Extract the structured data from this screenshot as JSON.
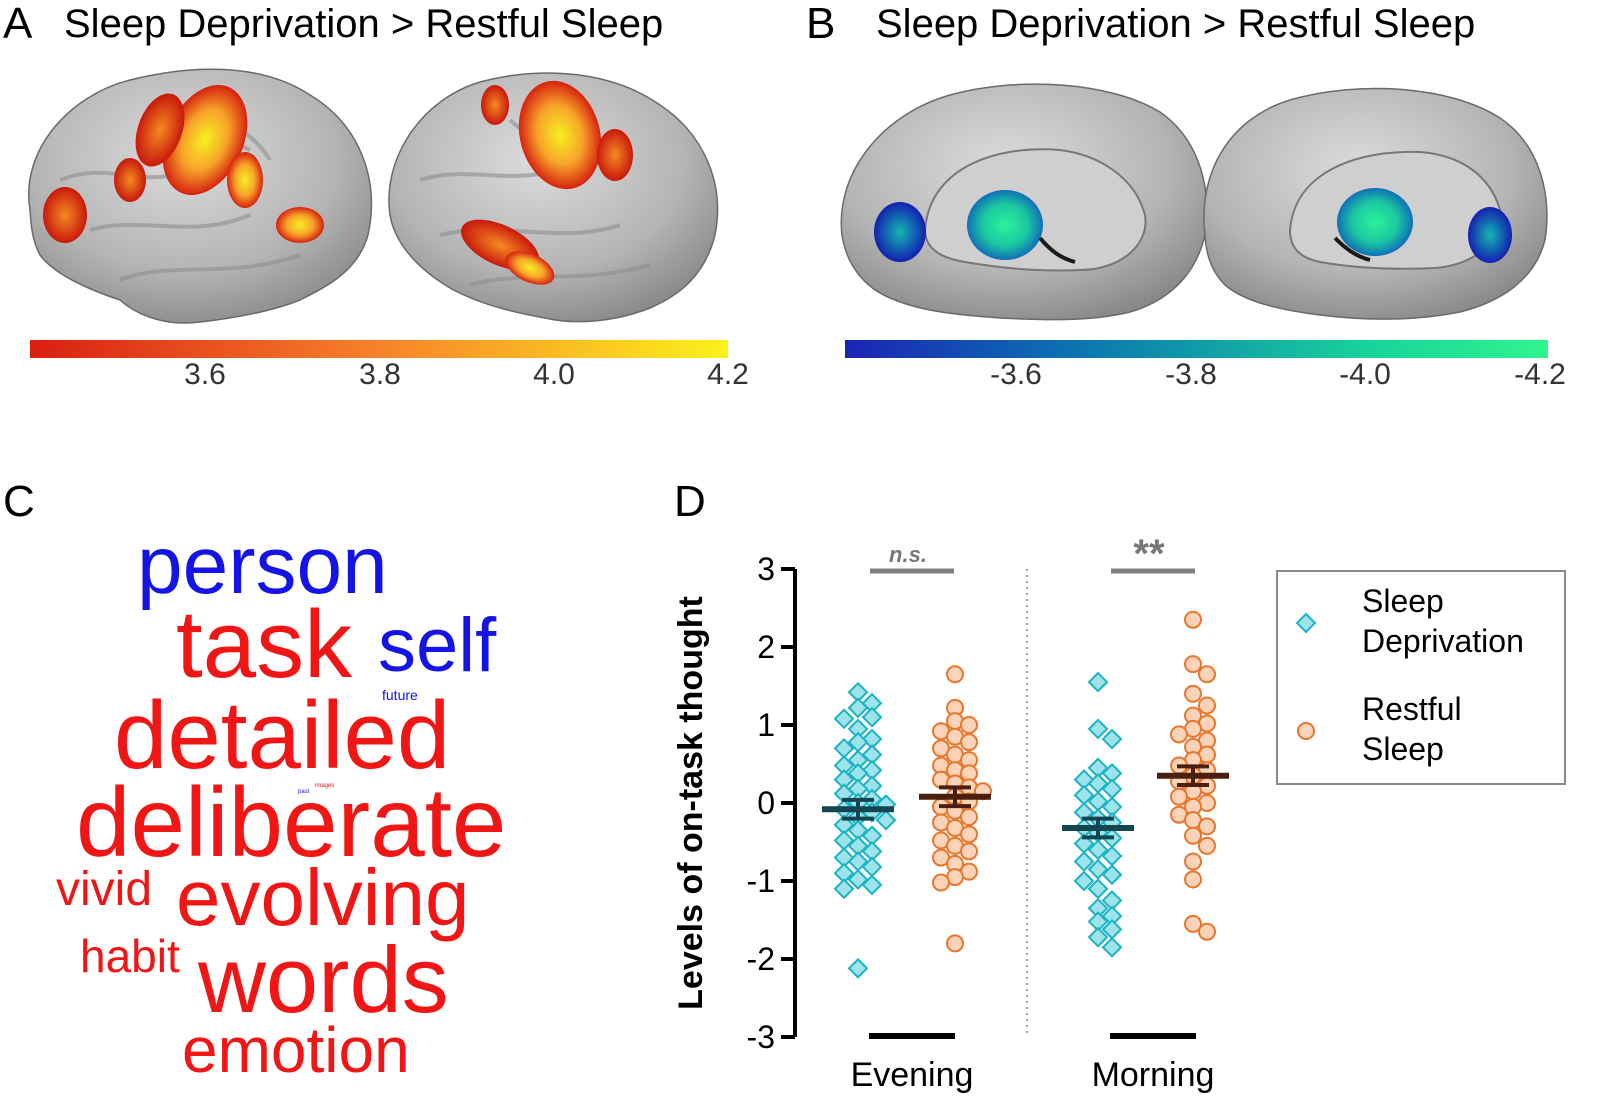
{
  "panels": {
    "a": {
      "letter": "A",
      "title": "Sleep Deprivation > Restful Sleep",
      "colorbar": {
        "ticks": [
          "3.6",
          "3.8",
          "4.0",
          "4.2"
        ],
        "colors": [
          "#d91f12",
          "#f7822a",
          "#fbf21a"
        ]
      },
      "images": {
        "left": "brain-lateral-left",
        "right": "brain-lateral-right"
      }
    },
    "b": {
      "letter": "B",
      "title": "Sleep Deprivation > Restful Sleep",
      "colorbar": {
        "ticks": [
          "-3.6",
          "-3.8",
          "-4.0",
          "-4.2"
        ],
        "colors": [
          "#1a24b5",
          "#0b79b0",
          "#18d49a",
          "#2ff58e"
        ]
      },
      "images": {
        "left": "brain-medial-left",
        "right": "brain-medial-right"
      }
    },
    "c": {
      "letter": "C",
      "words": [
        {
          "text": "person",
          "color": "#1414e6"
        },
        {
          "text": "task",
          "color": "#f01616"
        },
        {
          "text": "self",
          "color": "#1414e6"
        },
        {
          "text": "future",
          "color": "#1414e6"
        },
        {
          "text": "detailed",
          "color": "#f01616"
        },
        {
          "text": "past",
          "color": "#1414e6"
        },
        {
          "text": "images",
          "color": "#f01616"
        },
        {
          "text": "deliberate",
          "color": "#f01616"
        },
        {
          "text": "vivid",
          "color": "#f01616"
        },
        {
          "text": "evolving",
          "color": "#f01616"
        },
        {
          "text": "habit",
          "color": "#f01616"
        },
        {
          "text": "words",
          "color": "#f01616"
        },
        {
          "text": "emotion",
          "color": "#f01616"
        }
      ]
    },
    "d": {
      "letter": "D"
    }
  },
  "chart_data": {
    "type": "scatter",
    "ylabel": "Levels of on-task thought",
    "ylim": [
      -3,
      3
    ],
    "yticks": [
      3,
      2,
      1,
      0,
      -1,
      -2,
      -3
    ],
    "categories": [
      "Evening",
      "Morning"
    ],
    "significance": [
      "n.s.",
      "**"
    ],
    "legend": {
      "placement": "right",
      "items": [
        {
          "line1": "Sleep",
          "line2": "Deprivation",
          "marker": "diamond",
          "color": "#1cb3c4"
        },
        {
          "line1": "Restful",
          "line2": "Sleep",
          "marker": "circle",
          "color": "#e8772e"
        }
      ]
    },
    "series": [
      {
        "name": "Sleep Deprivation",
        "marker": "diamond",
        "color": "#1cb3c4",
        "fill": "#9ee3ea",
        "groups": [
          {
            "category": "Evening",
            "mean": -0.08,
            "sem": 0.12,
            "values": [
              1.42,
              1.28,
              1.22,
              1.1,
              1.08,
              0.95,
              0.82,
              0.78,
              0.7,
              0.62,
              0.55,
              0.48,
              0.42,
              0.38,
              0.3,
              0.22,
              0.18,
              0.12,
              0.05,
              0.0,
              -0.02,
              -0.08,
              -0.12,
              -0.18,
              -0.22,
              -0.28,
              -0.35,
              -0.42,
              -0.48,
              -0.55,
              -0.62,
              -0.7,
              -0.75,
              -0.82,
              -0.9,
              -0.98,
              -1.05,
              -1.1,
              -2.12
            ]
          },
          {
            "category": "Morning",
            "mean": -0.32,
            "sem": 0.12,
            "values": [
              1.55,
              0.95,
              0.82,
              0.45,
              0.38,
              0.3,
              0.25,
              0.18,
              0.1,
              0.02,
              -0.05,
              -0.12,
              -0.2,
              -0.25,
              -0.32,
              -0.38,
              -0.45,
              -0.52,
              -0.6,
              -0.68,
              -0.75,
              -0.85,
              -0.92,
              -1.0,
              -1.1,
              -1.25,
              -1.35,
              -1.45,
              -1.52,
              -1.62,
              -1.72,
              -1.85
            ]
          }
        ]
      },
      {
        "name": "Restful Sleep",
        "marker": "circle",
        "color": "#e8772e",
        "fill": "#fad3b8",
        "groups": [
          {
            "category": "Evening",
            "mean": 0.08,
            "sem": 0.12,
            "values": [
              1.65,
              1.22,
              1.05,
              1.0,
              0.92,
              0.85,
              0.78,
              0.7,
              0.62,
              0.55,
              0.48,
              0.42,
              0.38,
              0.3,
              0.25,
              0.2,
              0.15,
              0.08,
              0.02,
              -0.05,
              -0.1,
              -0.18,
              -0.25,
              -0.32,
              -0.4,
              -0.48,
              -0.55,
              -0.62,
              -0.7,
              -0.78,
              -0.88,
              -0.95,
              -1.02,
              -1.8
            ]
          },
          {
            "category": "Morning",
            "mean": 0.35,
            "sem": 0.12,
            "values": [
              2.35,
              1.78,
              1.65,
              1.4,
              1.25,
              1.12,
              1.02,
              0.95,
              0.88,
              0.8,
              0.72,
              0.62,
              0.55,
              0.48,
              0.42,
              0.35,
              0.28,
              0.22,
              0.15,
              0.08,
              0.0,
              -0.05,
              -0.15,
              -0.22,
              -0.3,
              -0.42,
              -0.55,
              -0.75,
              -0.98,
              -1.55,
              -1.65
            ]
          }
        ]
      }
    ]
  }
}
